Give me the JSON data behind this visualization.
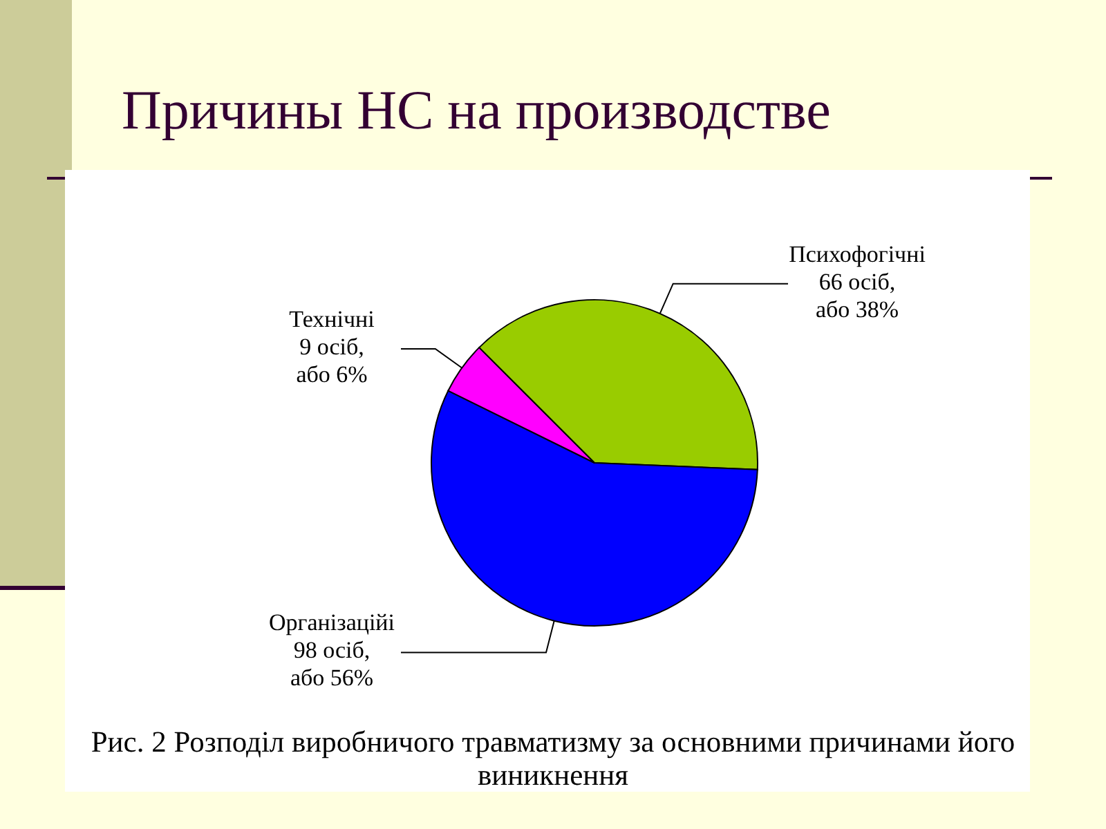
{
  "chart_data": {
    "type": "pie",
    "title": "Причины НС на производстве",
    "categories": [
      "Психофогічні",
      "Організаційі",
      "Технічні"
    ],
    "values": [
      66,
      98,
      9
    ],
    "colors": [
      "#99cc00",
      "#0000ff",
      "#ff00ff"
    ],
    "value_labels": [
      "66 осіб, або 38%",
      "98 осіб, або 56%",
      "9 осіб, або 6%"
    ],
    "annotations": [
      "Рис. 2 Розподіл виробничого травматизму за основними причинами його виникнення"
    ]
  }
}
